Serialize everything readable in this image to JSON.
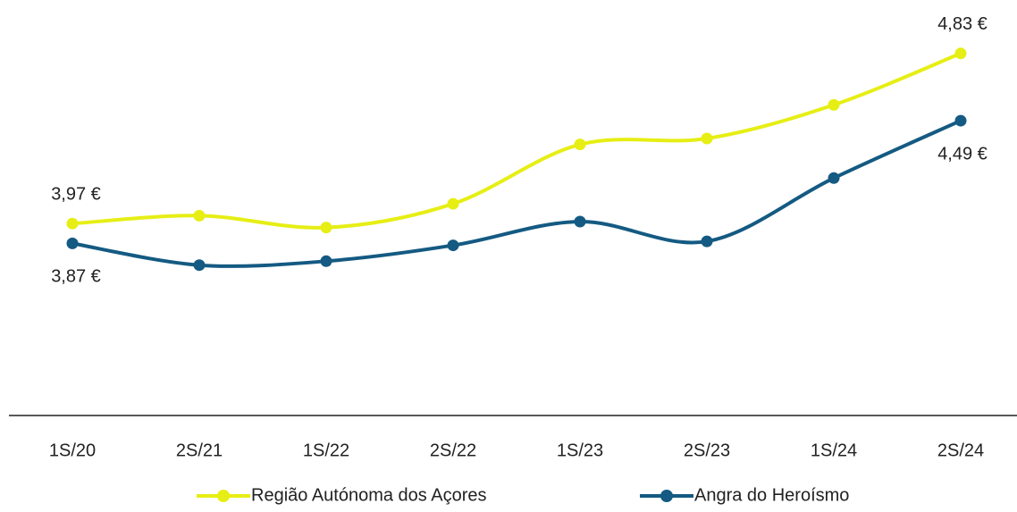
{
  "chart_data": {
    "type": "line",
    "categories": [
      "1S/20",
      "2S/21",
      "1S/22",
      "2S/22",
      "1S/23",
      "2S/23",
      "1S/24",
      "2S/24"
    ],
    "series": [
      {
        "name": "Região Autónoma dos Açores",
        "color": "#e6ee14",
        "values": [
          3.97,
          4.01,
          3.95,
          4.07,
          4.37,
          4.4,
          4.57,
          4.83
        ],
        "value_labels": [
          "3,97 €",
          null,
          null,
          null,
          null,
          null,
          null,
          "4,83 €"
        ]
      },
      {
        "name": "Angra do Heroísmo",
        "color": "#145a82",
        "values": [
          3.87,
          3.76,
          3.78,
          3.86,
          3.98,
          3.88,
          4.2,
          4.49
        ],
        "value_labels": [
          "3,87 €",
          null,
          null,
          null,
          null,
          null,
          null,
          "4,49 €"
        ]
      }
    ],
    "ylim": [
      3.0,
      5.1
    ],
    "legend": "bottom"
  }
}
